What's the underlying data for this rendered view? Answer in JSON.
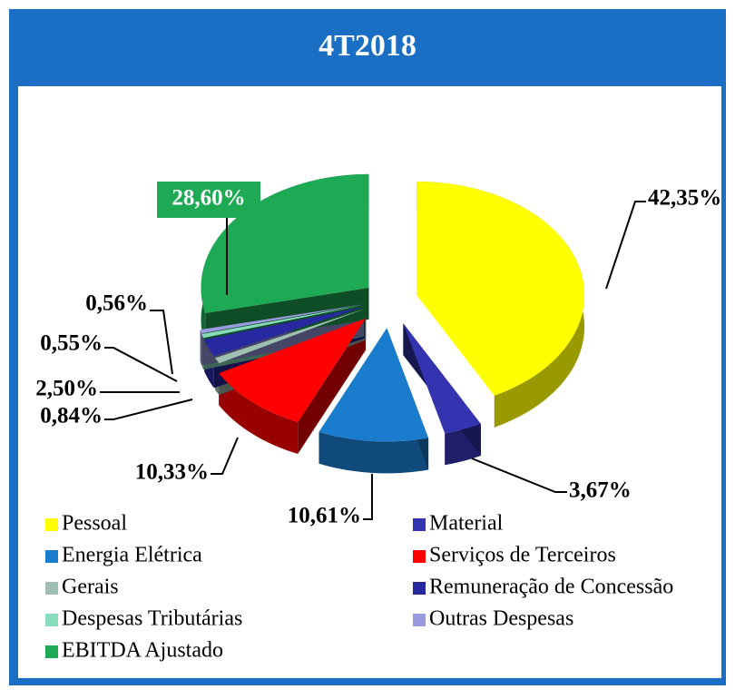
{
  "chart_data": {
    "type": "pie",
    "title": "4T2018",
    "categories": [
      "Pessoal",
      "Material",
      "Energia Elétrica",
      "Serviços de Terceiros",
      "Gerais",
      "Remuneração de Concessão",
      "Despesas Tributárias",
      "Outras Despesas",
      "EBITDA Ajustado"
    ],
    "values": [
      42.35,
      3.67,
      10.61,
      10.33,
      0.84,
      2.5,
      0.55,
      0.56,
      28.6
    ],
    "value_labels": [
      "42,35%",
      "3,67%",
      "10,61%",
      "10,33%",
      "0,84%",
      "2,50%",
      "0,55%",
      "0,56%",
      "28,60%"
    ],
    "colors": [
      "#ffff00",
      "#3434b0",
      "#1a7ccc",
      "#ff0000",
      "#9fbfb0",
      "#2828a0",
      "#88dcbc",
      "#9a9ae0",
      "#1eaa55"
    ]
  }
}
